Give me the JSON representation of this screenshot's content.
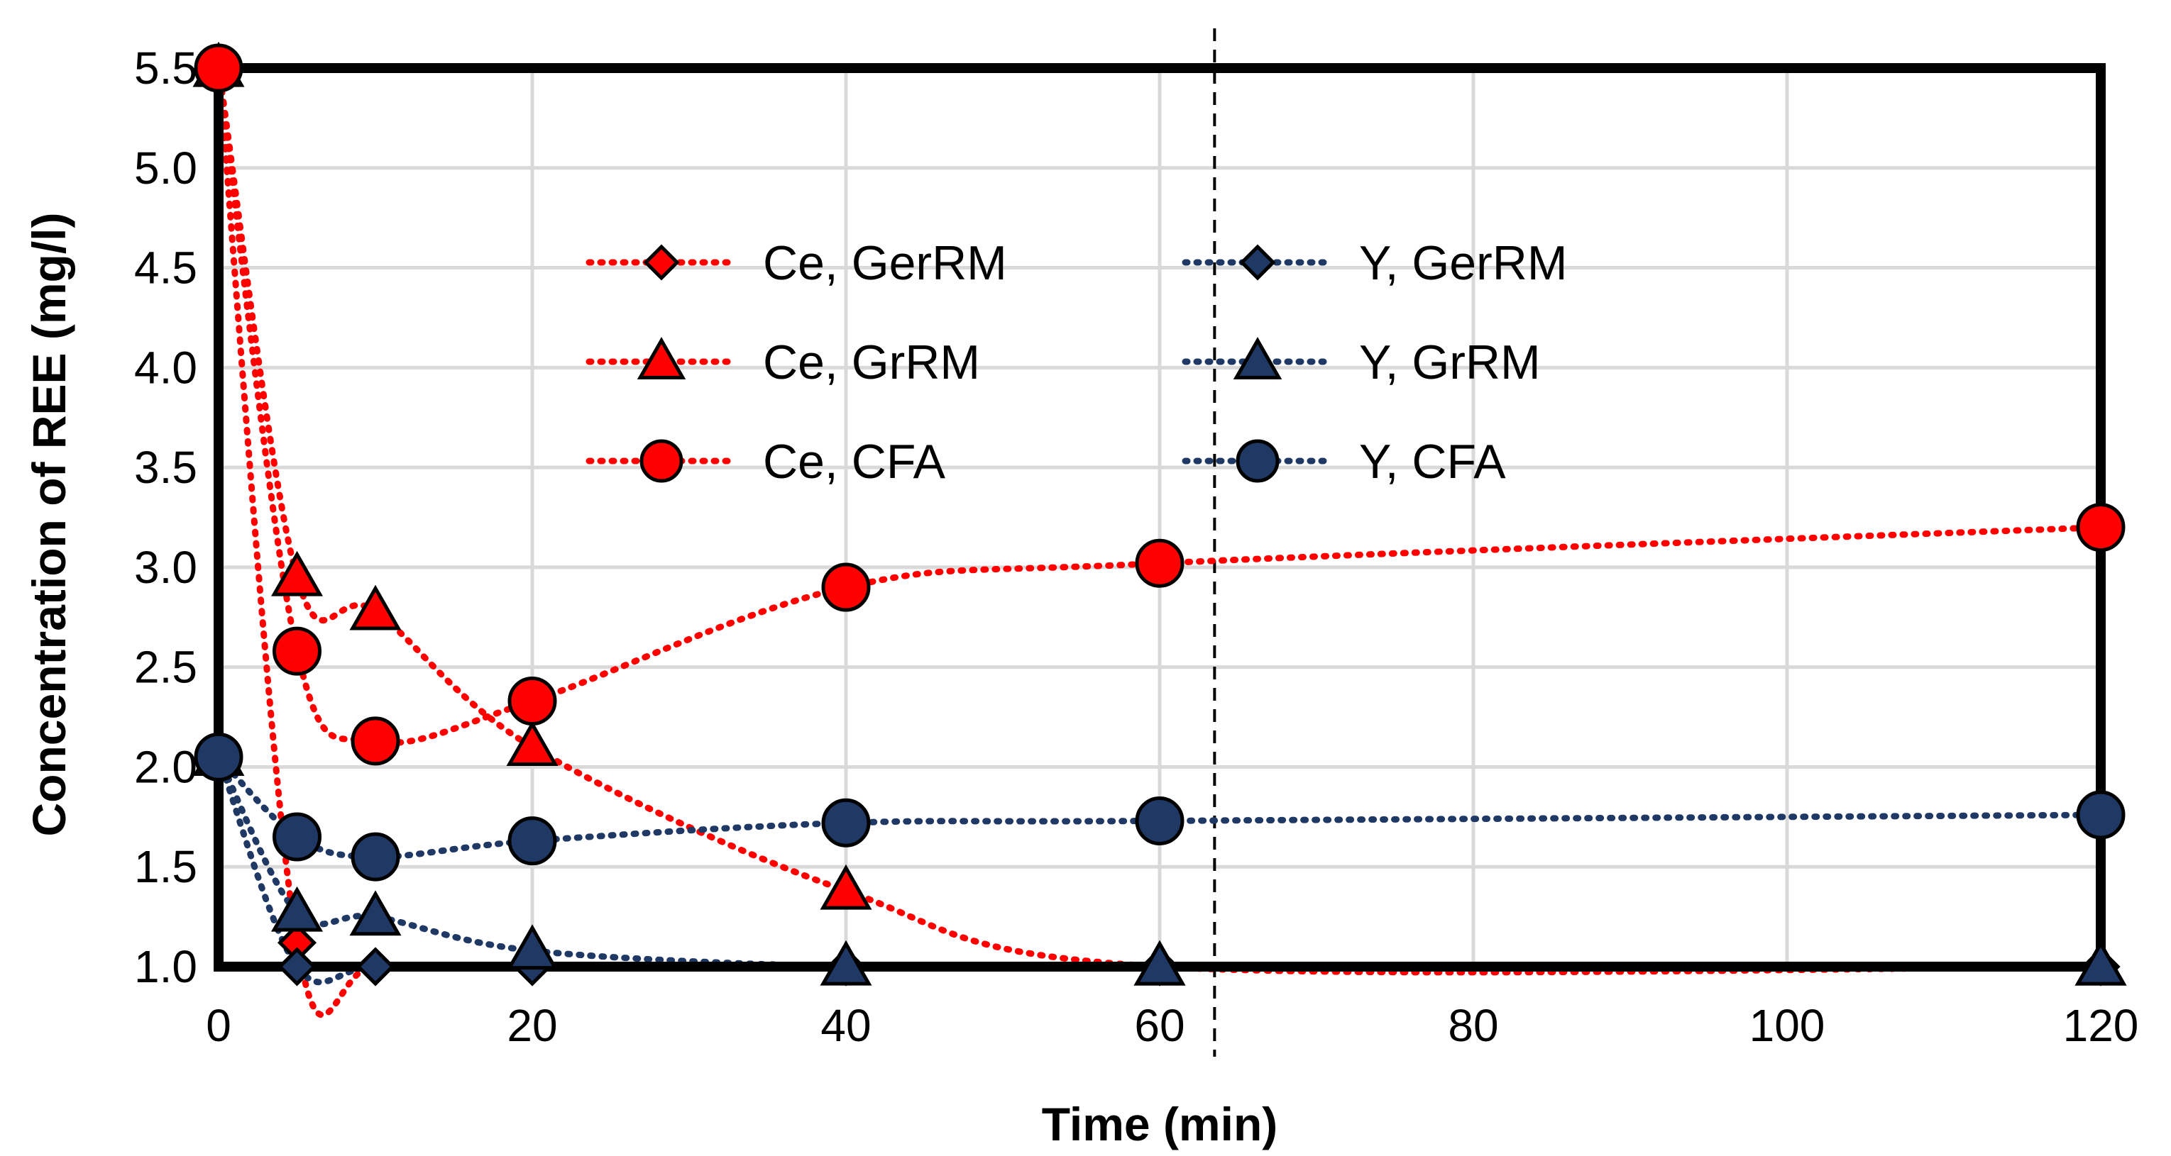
{
  "chart_data": {
    "type": "line",
    "title": "",
    "xlabel": "Time (min)",
    "ylabel": "Concentration of REE (mg/l)",
    "x_ticks": [
      0,
      20,
      40,
      60,
      80,
      100,
      120
    ],
    "y_ticks": [
      1.0,
      1.5,
      2.0,
      2.5,
      3.0,
      3.5,
      4.0,
      4.5,
      5.0,
      5.5
    ],
    "x_tick_labels": [
      "0",
      "20",
      "40",
      "60",
      "80",
      "100",
      "120"
    ],
    "y_tick_labels": [
      "1.0",
      "1.5",
      "2.0",
      "2.5",
      "3.0",
      "3.5",
      "4.0",
      "4.5",
      "5.0",
      "5.5"
    ],
    "xlim": [
      0,
      120
    ],
    "ylim": [
      1.0,
      5.5
    ],
    "grid": true,
    "reference_line_x": 63.5,
    "legend_position": "center",
    "series": [
      {
        "name": "Ce, GerRM",
        "color": "#ff0000",
        "marker": "diamond",
        "x": [
          0,
          5,
          10,
          20,
          40,
          60,
          120
        ],
        "y": [
          5.5,
          1.12,
          1.0,
          1.0,
          1.0,
          1.0,
          1.0
        ]
      },
      {
        "name": "Ce, GrRM",
        "color": "#ff0000",
        "marker": "triangle",
        "x": [
          0,
          5,
          10,
          20,
          40,
          60,
          120
        ],
        "y": [
          5.5,
          2.95,
          2.78,
          2.1,
          1.38,
          1.0,
          1.0
        ]
      },
      {
        "name": "Ce, CFA",
        "color": "#ff0000",
        "marker": "circle",
        "x": [
          0,
          5,
          10,
          20,
          40,
          60,
          120
        ],
        "y": [
          5.5,
          2.58,
          2.13,
          2.33,
          2.9,
          3.02,
          3.2
        ]
      },
      {
        "name": "Y, GerRM",
        "color": "#1f3864",
        "marker": "diamond",
        "x": [
          0,
          5,
          10,
          20,
          40,
          60,
          120
        ],
        "y": [
          2.05,
          1.0,
          1.0,
          1.0,
          1.0,
          1.0,
          1.0
        ]
      },
      {
        "name": "Y, GrRM",
        "color": "#1f3864",
        "marker": "triangle",
        "x": [
          0,
          5,
          10,
          20,
          40,
          60,
          120
        ],
        "y": [
          2.05,
          1.27,
          1.25,
          1.08,
          1.0,
          1.0,
          1.0
        ]
      },
      {
        "name": "Y, CFA",
        "color": "#1f3864",
        "marker": "circle",
        "x": [
          0,
          5,
          10,
          20,
          40,
          60,
          120
        ],
        "y": [
          2.05,
          1.65,
          1.55,
          1.63,
          1.72,
          1.73,
          1.76
        ]
      }
    ]
  }
}
